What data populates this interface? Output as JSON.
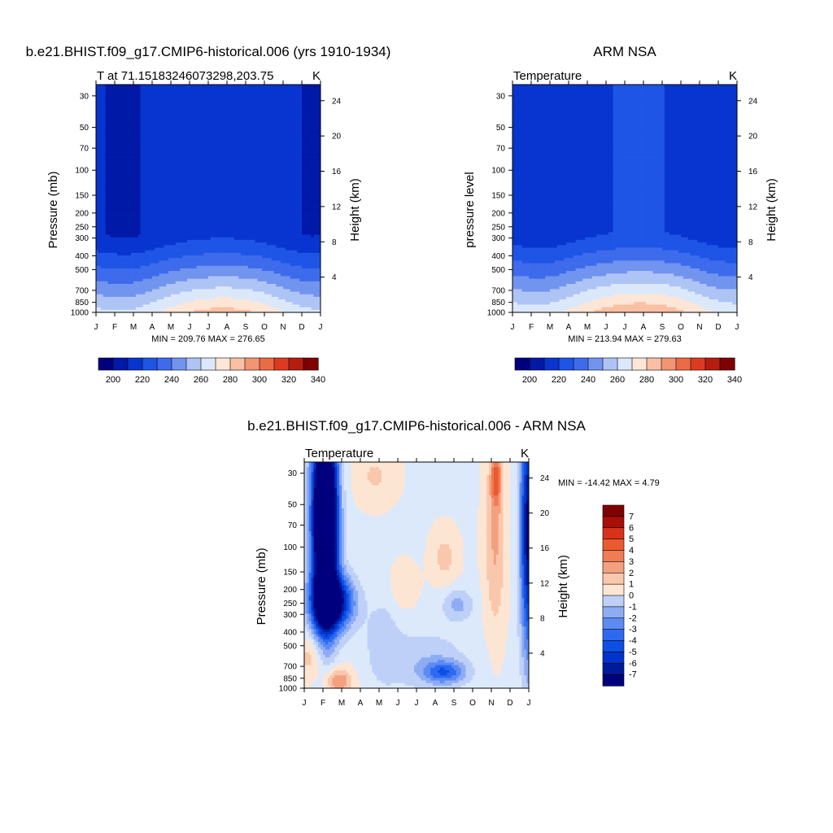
{
  "colors": {
    "abs_palette": [
      "#00007f",
      "#0019a7",
      "#0835d0",
      "#1e55e6",
      "#3d6bec",
      "#7194ef",
      "#aec4f5",
      "#dbe8fa",
      "#fde6d6",
      "#f9c0a3",
      "#f39472",
      "#ec6a45",
      "#dd3b1f",
      "#b51e0e",
      "#7f0000"
    ],
    "diff_palette": [
      "#00007f",
      "#001a99",
      "#0033cc",
      "#0d4fe3",
      "#2d6af0",
      "#5c8bf2",
      "#8eacf4",
      "#bed0f7",
      "#dce9fb",
      "#fde5d3",
      "#f9c7ab",
      "#f3a07f",
      "#ee7c55",
      "#eb5a2e",
      "#d8321a",
      "#a80f07",
      "#7f0000"
    ]
  },
  "panels": {
    "model": {
      "title": "b.e21.BHIST.f09_g17.CMIP6-historical.006 (yrs 1910-1934)",
      "left_sub": "T at 71.15183246073298,203.75",
      "right_sub": "K",
      "ylabel": "Pressure (mb)",
      "ylabel_right": "Height (km)",
      "stat_text": "MIN = 209.76 MAX = 276.65"
    },
    "obs": {
      "title": "ARM NSA",
      "left_sub": "Temperature",
      "right_sub": "K",
      "ylabel": "pressure level",
      "ylabel_right": "Height (km)",
      "stat_text": "MIN = 213.94 MAX = 279.63"
    },
    "diff": {
      "title": "b.e21.BHIST.f09_g17.CMIP6-historical.006 - ARM NSA",
      "left_sub": "Temperature",
      "right_sub": "K",
      "ylabel": "Pressure (mb)",
      "ylabel_right": "Height (km)",
      "stat_text": "MIN = -14.42 MAX =   4.79"
    }
  },
  "chart_data": [
    {
      "type": "heatmap",
      "title": "b.e21.BHIST.f09_g17.CMIP6-historical.006 (yrs 1910-1934)",
      "x_ticks": [
        "J",
        "F",
        "M",
        "A",
        "M",
        "J",
        "J",
        "A",
        "S",
        "O",
        "N",
        "D",
        "J"
      ],
      "y_ticks": [
        "30",
        "50",
        "70",
        "100",
        "150",
        "200",
        "250",
        "300",
        "400",
        "500",
        "700",
        "850",
        "1000"
      ],
      "y_right_ticks": [
        "24",
        "20",
        "16",
        "12",
        "8",
        "4"
      ],
      "ylim": [
        1000,
        25
      ],
      "levels": [
        200,
        210,
        220,
        230,
        240,
        250,
        260,
        270,
        280,
        290,
        300,
        310,
        320,
        330,
        340
      ],
      "colorbar_labels": [
        "200",
        "220",
        "240",
        "260",
        "280",
        "300",
        "320",
        "340"
      ],
      "min": 209.76,
      "max": 276.65,
      "units": "K"
    },
    {
      "type": "heatmap",
      "title": "ARM NSA",
      "x_ticks": [
        "J",
        "F",
        "M",
        "A",
        "M",
        "J",
        "J",
        "A",
        "S",
        "O",
        "N",
        "D",
        "J"
      ],
      "y_ticks": [
        "30",
        "50",
        "70",
        "100",
        "150",
        "200",
        "250",
        "300",
        "400",
        "500",
        "700",
        "850",
        "1000"
      ],
      "y_right_ticks": [
        "24",
        "20",
        "16",
        "12",
        "8",
        "4"
      ],
      "ylim": [
        1000,
        25
      ],
      "levels": [
        200,
        210,
        220,
        230,
        240,
        250,
        260,
        270,
        280,
        290,
        300,
        310,
        320,
        330,
        340
      ],
      "colorbar_labels": [
        "200",
        "220",
        "240",
        "260",
        "280",
        "300",
        "320",
        "340"
      ],
      "min": 213.94,
      "max": 279.63,
      "units": "K"
    },
    {
      "type": "heatmap",
      "title": "b.e21.BHIST.f09_g17.CMIP6-historical.006 - ARM NSA",
      "x_ticks": [
        "J",
        "F",
        "M",
        "A",
        "M",
        "J",
        "J",
        "A",
        "S",
        "O",
        "N",
        "D",
        "J"
      ],
      "y_ticks": [
        "30",
        "50",
        "70",
        "100",
        "150",
        "200",
        "250",
        "300",
        "400",
        "500",
        "700",
        "850",
        "1000"
      ],
      "y_right_ticks": [
        "24",
        "20",
        "16",
        "12",
        "8",
        "4"
      ],
      "ylim": [
        1000,
        25
      ],
      "levels": [
        -7,
        -6,
        -5,
        -4,
        -3,
        -2,
        -1,
        0,
        1,
        2,
        3,
        4,
        5,
        6,
        7
      ],
      "colorbar_labels": [
        "7",
        "6",
        "5",
        "4",
        "3",
        "2",
        "1",
        "0",
        "-1",
        "-2",
        "-3",
        "-4",
        "-5",
        "-6",
        "-7"
      ],
      "min": -14.42,
      "max": 4.79,
      "units": "K"
    }
  ]
}
